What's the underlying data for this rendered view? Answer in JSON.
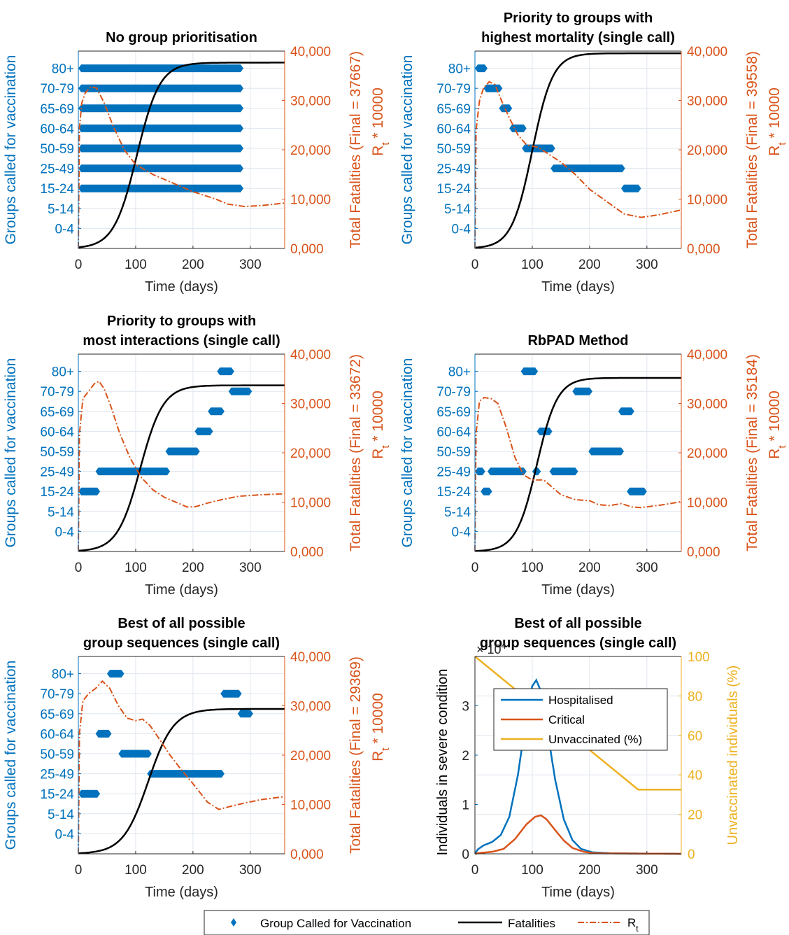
{
  "colors": {
    "blue": "#0072BD",
    "orange": "#D95319",
    "yellow": "#EDB120",
    "black": "#000000",
    "grid": "#dfe6ee"
  },
  "legend": {
    "group_label": "Group Called for Vaccination",
    "fatalities_label": "Fatalities",
    "rt_label": "R",
    "rt_sub": "t"
  },
  "chart_data": [
    {
      "type": "line",
      "title_lines": [
        "No group prioritisation"
      ],
      "xlabel": "Time (days)",
      "ylabel_left": "Groups called for vaccination",
      "ylabel_right": "Total Fatalities (Final = 37667)",
      "ylabel_rt": "R",
      "ylabel_rt_sub": "t",
      "ylabel_rt_suffix": " * 10000",
      "xlim": [
        0,
        360
      ],
      "x_ticks": [
        "0",
        "100",
        "200",
        "300"
      ],
      "categories": [
        "0-4",
        "5-14",
        "15-24",
        "25-49",
        "50-59",
        "60-64",
        "65-69",
        "70-79",
        "80+"
      ],
      "right_ylim": [
        0,
        40000
      ],
      "right_ticks": [
        "0,000",
        "10,000",
        "20,000",
        "30,000",
        "40,000"
      ],
      "groups": [
        {
          "group": "80+",
          "start": 0,
          "end": 288
        },
        {
          "group": "70-79",
          "start": 0,
          "end": 288
        },
        {
          "group": "65-69",
          "start": 0,
          "end": 288
        },
        {
          "group": "60-64",
          "start": 0,
          "end": 288
        },
        {
          "group": "50-59",
          "start": 0,
          "end": 288
        },
        {
          "group": "25-49",
          "start": 0,
          "end": 288
        },
        {
          "group": "15-24",
          "start": 0,
          "end": 288
        }
      ],
      "fatalities": {
        "final": 37667,
        "midpoint": 102,
        "width": 20
      },
      "rt": [
        [
          0,
          0
        ],
        [
          2,
          24500
        ],
        [
          6,
          29500
        ],
        [
          12,
          31500
        ],
        [
          22,
          32800
        ],
        [
          32,
          32500
        ],
        [
          45,
          29500
        ],
        [
          60,
          25000
        ],
        [
          80,
          20000
        ],
        [
          100,
          17000
        ],
        [
          130,
          15000
        ],
        [
          170,
          13000
        ],
        [
          200,
          11500
        ],
        [
          240,
          10000
        ],
        [
          260,
          9000
        ],
        [
          290,
          8500
        ],
        [
          320,
          8700
        ],
        [
          360,
          9200
        ]
      ]
    },
    {
      "type": "line",
      "title_lines": [
        "Priority to groups with",
        "highest mortality (single call)"
      ],
      "xlabel": "Time (days)",
      "ylabel_left": "Groups called for vaccination",
      "ylabel_right": "Total Fatalities (Final = 39558)",
      "ylabel_rt": "R",
      "ylabel_rt_sub": "t",
      "ylabel_rt_suffix": " * 10000",
      "xlim": [
        0,
        360
      ],
      "x_ticks": [
        "0",
        "100",
        "200",
        "300"
      ],
      "categories": [
        "0-4",
        "5-14",
        "15-24",
        "25-49",
        "50-59",
        "60-64",
        "65-69",
        "70-79",
        "80+"
      ],
      "right_ylim": [
        0,
        40000
      ],
      "right_ticks": [
        "0,000",
        "10,000",
        "20,000",
        "30,000",
        "40,000"
      ],
      "groups": [
        {
          "group": "80+",
          "start": 0,
          "end": 22
        },
        {
          "group": "70-79",
          "start": 15,
          "end": 48
        },
        {
          "group": "65-69",
          "start": 42,
          "end": 65
        },
        {
          "group": "60-64",
          "start": 60,
          "end": 90
        },
        {
          "group": "50-59",
          "start": 82,
          "end": 140
        },
        {
          "group": "25-49",
          "start": 132,
          "end": 262
        },
        {
          "group": "15-24",
          "start": 255,
          "end": 290
        }
      ],
      "fatalities": {
        "final": 39558,
        "midpoint": 100,
        "width": 18
      },
      "rt": [
        [
          0,
          0
        ],
        [
          2,
          24000
        ],
        [
          8,
          30000
        ],
        [
          15,
          32500
        ],
        [
          25,
          33800
        ],
        [
          35,
          33200
        ],
        [
          48,
          29500
        ],
        [
          62,
          26000
        ],
        [
          75,
          23000
        ],
        [
          90,
          21000
        ],
        [
          110,
          20500
        ],
        [
          130,
          19000
        ],
        [
          150,
          17500
        ],
        [
          175,
          15000
        ],
        [
          200,
          12000
        ],
        [
          230,
          9500
        ],
        [
          260,
          7000
        ],
        [
          290,
          6300
        ],
        [
          320,
          6800
        ],
        [
          360,
          7800
        ]
      ]
    },
    {
      "type": "line",
      "title_lines": [
        "Priority to groups with",
        "most interactions (single call)"
      ],
      "xlabel": "Time (days)",
      "ylabel_left": "Groups called for vaccination",
      "ylabel_right": "Total Fatalities (Final = 33672)",
      "ylabel_rt": "R",
      "ylabel_rt_sub": "t",
      "ylabel_rt_suffix": " * 10000",
      "xlim": [
        0,
        360
      ],
      "x_ticks": [
        "0",
        "100",
        "200",
        "300"
      ],
      "categories": [
        "0-4",
        "5-14",
        "15-24",
        "25-49",
        "50-59",
        "60-64",
        "65-69",
        "70-79",
        "80+"
      ],
      "right_ylim": [
        0,
        40000
      ],
      "right_ticks": [
        "0,000",
        "10,000",
        "20,000",
        "30,000",
        "40,000"
      ],
      "groups": [
        {
          "group": "15-24",
          "start": 0,
          "end": 38
        },
        {
          "group": "25-49",
          "start": 30,
          "end": 160
        },
        {
          "group": "50-59",
          "start": 152,
          "end": 212
        },
        {
          "group": "60-64",
          "start": 203,
          "end": 235
        },
        {
          "group": "65-69",
          "start": 226,
          "end": 255
        },
        {
          "group": "70-79",
          "start": 262,
          "end": 303
        },
        {
          "group": "80+",
          "start": 242,
          "end": 272
        }
      ],
      "fatalities": {
        "final": 33672,
        "midpoint": 108,
        "width": 20
      },
      "rt": [
        [
          0,
          0
        ],
        [
          2,
          24000
        ],
        [
          8,
          31000
        ],
        [
          18,
          32500
        ],
        [
          28,
          34000
        ],
        [
          36,
          34500
        ],
        [
          45,
          33000
        ],
        [
          58,
          29000
        ],
        [
          72,
          24000
        ],
        [
          90,
          19000
        ],
        [
          110,
          15000
        ],
        [
          130,
          12500
        ],
        [
          150,
          11000
        ],
        [
          170,
          10000
        ],
        [
          190,
          9000
        ],
        [
          205,
          9100
        ],
        [
          225,
          9800
        ],
        [
          250,
          10500
        ],
        [
          280,
          11200
        ],
        [
          320,
          11500
        ],
        [
          360,
          11700
        ]
      ]
    },
    {
      "type": "line",
      "title_lines": [
        "RbPAD Method"
      ],
      "xlabel": "Time (days)",
      "ylabel_left": "Groups called for vaccination",
      "ylabel_right": "Total Fatalities (Final = 35184)",
      "ylabel_rt": "R",
      "ylabel_rt_sub": "t",
      "ylabel_rt_suffix": " * 10000",
      "xlim": [
        0,
        360
      ],
      "x_ticks": [
        "0",
        "100",
        "200",
        "300"
      ],
      "categories": [
        "0-4",
        "5-14",
        "15-24",
        "25-49",
        "50-59",
        "60-64",
        "65-69",
        "70-79",
        "80+"
      ],
      "right_ylim": [
        0,
        40000
      ],
      "right_ticks": [
        "0,000",
        "10,000",
        "20,000",
        "30,000",
        "40,000"
      ],
      "groups": [
        {
          "group": "25-49",
          "start": 0,
          "end": 18
        },
        {
          "group": "25-49",
          "start": 22,
          "end": 90
        },
        {
          "group": "25-49",
          "start": 100,
          "end": 115
        },
        {
          "group": "25-49",
          "start": 130,
          "end": 180
        },
        {
          "group": "15-24",
          "start": 10,
          "end": 30
        },
        {
          "group": "80+",
          "start": 80,
          "end": 110
        },
        {
          "group": "60-64",
          "start": 108,
          "end": 135
        },
        {
          "group": "70-79",
          "start": 170,
          "end": 205
        },
        {
          "group": "50-59",
          "start": 198,
          "end": 260
        },
        {
          "group": "65-69",
          "start": 250,
          "end": 278
        },
        {
          "group": "15-24",
          "start": 265,
          "end": 300
        }
      ],
      "fatalities": {
        "final": 35184,
        "midpoint": 108,
        "width": 18
      },
      "rt": [
        [
          0,
          0
        ],
        [
          2,
          24000
        ],
        [
          8,
          30500
        ],
        [
          16,
          31200
        ],
        [
          28,
          31000
        ],
        [
          40,
          30000
        ],
        [
          55,
          25000
        ],
        [
          70,
          19000
        ],
        [
          85,
          15500
        ],
        [
          100,
          14500
        ],
        [
          120,
          14500
        ],
        [
          135,
          13000
        ],
        [
          150,
          11500
        ],
        [
          175,
          10500
        ],
        [
          200,
          10300
        ],
        [
          215,
          9500
        ],
        [
          235,
          9300
        ],
        [
          255,
          9700
        ],
        [
          275,
          9000
        ],
        [
          290,
          8900
        ],
        [
          310,
          9200
        ],
        [
          330,
          9500
        ],
        [
          360,
          10100
        ]
      ]
    },
    {
      "type": "line",
      "title_lines": [
        "Best of all possible",
        "group sequences (single call)"
      ],
      "xlabel": "Time (days)",
      "ylabel_left": "Groups called for vaccination",
      "ylabel_right": "Total Fatalities (Final = 29369)",
      "ylabel_rt": "R",
      "ylabel_rt_sub": "t",
      "ylabel_rt_suffix": " * 10000",
      "xlim": [
        0,
        360
      ],
      "x_ticks": [
        "0",
        "100",
        "200",
        "300"
      ],
      "categories": [
        "0-4",
        "5-14",
        "15-24",
        "25-49",
        "50-59",
        "60-64",
        "65-69",
        "70-79",
        "80+"
      ],
      "right_ylim": [
        0,
        40000
      ],
      "right_ticks": [
        "0,000",
        "10,000",
        "20,000",
        "30,000",
        "40,000"
      ],
      "groups": [
        {
          "group": "15-24",
          "start": 0,
          "end": 38
        },
        {
          "group": "60-64",
          "start": 30,
          "end": 58
        },
        {
          "group": "80+",
          "start": 50,
          "end": 80
        },
        {
          "group": "50-59",
          "start": 70,
          "end": 128
        },
        {
          "group": "25-49",
          "start": 120,
          "end": 255
        },
        {
          "group": "70-79",
          "start": 248,
          "end": 285
        },
        {
          "group": "65-69",
          "start": 278,
          "end": 305
        }
      ],
      "fatalities": {
        "final": 29369,
        "midpoint": 122,
        "width": 22
      },
      "rt": [
        [
          0,
          0
        ],
        [
          2,
          24500
        ],
        [
          8,
          31000
        ],
        [
          18,
          32500
        ],
        [
          30,
          33500
        ],
        [
          42,
          35000
        ],
        [
          55,
          33500
        ],
        [
          70,
          30000
        ],
        [
          85,
          27500
        ],
        [
          100,
          27000
        ],
        [
          112,
          27300
        ],
        [
          125,
          26000
        ],
        [
          140,
          23500
        ],
        [
          160,
          20000
        ],
        [
          180,
          17000
        ],
        [
          205,
          13500
        ],
        [
          225,
          10500
        ],
        [
          245,
          9000
        ],
        [
          265,
          9600
        ],
        [
          290,
          10300
        ],
        [
          320,
          11000
        ],
        [
          360,
          11600
        ]
      ]
    },
    {
      "type": "line",
      "title_lines": [
        "Best of all possible",
        "group sequences (single call)"
      ],
      "xlabel": "Time (days)",
      "ylabel_left": "Individuals in severe condition",
      "ylabel_right": "Unvaccinated individuals (%)",
      "xlim": [
        0,
        360
      ],
      "x_ticks": [
        "0",
        "100",
        "200",
        "300"
      ],
      "left_ylim": [
        0,
        4
      ],
      "left_ticks": [
        "0",
        "1",
        "2",
        "3"
      ],
      "left_scale_label": "× 10",
      "left_scale_exp": "4",
      "right_ylim": [
        0,
        100
      ],
      "right_ticks": [
        "0",
        "20",
        "40",
        "60",
        "80",
        "100"
      ],
      "legend": [
        "Hospitalised",
        "Critical",
        "Unvaccinated (%)"
      ],
      "hospitalised": [
        [
          0,
          0
        ],
        [
          5,
          0.09
        ],
        [
          15,
          0.17
        ],
        [
          30,
          0.24
        ],
        [
          45,
          0.38
        ],
        [
          60,
          0.75
        ],
        [
          75,
          1.6
        ],
        [
          90,
          2.8
        ],
        [
          100,
          3.4
        ],
        [
          107,
          3.52
        ],
        [
          115,
          3.3
        ],
        [
          125,
          2.6
        ],
        [
          140,
          1.5
        ],
        [
          155,
          0.7
        ],
        [
          170,
          0.28
        ],
        [
          185,
          0.1
        ],
        [
          205,
          0.03
        ],
        [
          240,
          0.01
        ],
        [
          360,
          0
        ]
      ],
      "critical": [
        [
          0,
          0
        ],
        [
          10,
          0.02
        ],
        [
          30,
          0.04
        ],
        [
          50,
          0.1
        ],
        [
          70,
          0.3
        ],
        [
          90,
          0.6
        ],
        [
          105,
          0.75
        ],
        [
          115,
          0.78
        ],
        [
          125,
          0.7
        ],
        [
          140,
          0.48
        ],
        [
          155,
          0.27
        ],
        [
          170,
          0.12
        ],
        [
          190,
          0.04
        ],
        [
          210,
          0.01
        ],
        [
          360,
          0
        ]
      ],
      "unvaccinated": [
        [
          0,
          100
        ],
        [
          285,
          32.5
        ],
        [
          360,
          32.5
        ]
      ]
    }
  ]
}
